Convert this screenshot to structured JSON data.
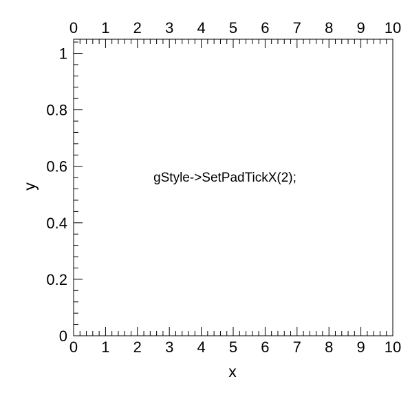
{
  "canvas": {
    "background": "#ffffff",
    "frame_color": "#000000"
  },
  "chart_data": {
    "type": "scatter",
    "title": "",
    "xlabel": "x",
    "ylabel": "y",
    "xlim": [
      0,
      10
    ],
    "ylim": [
      0,
      1.05
    ],
    "x_ticks": [
      0,
      1,
      2,
      3,
      4,
      5,
      6,
      7,
      8,
      9,
      10
    ],
    "y_ticks": [
      0,
      0.2,
      0.4,
      0.6,
      0.8,
      1
    ],
    "x_tick_labels": [
      "0",
      "1",
      "2",
      "3",
      "4",
      "5",
      "6",
      "7",
      "8",
      "9",
      "10"
    ],
    "y_tick_labels": [
      "0",
      "0.2",
      "0.4",
      "0.6",
      "0.8",
      "1"
    ],
    "x_minor_per_major": 5,
    "y_minor_per_major": 5,
    "top_axis_mirrored": true,
    "grid": false,
    "series": [],
    "annotation": "gStyle->SetPadTickX(2);"
  }
}
